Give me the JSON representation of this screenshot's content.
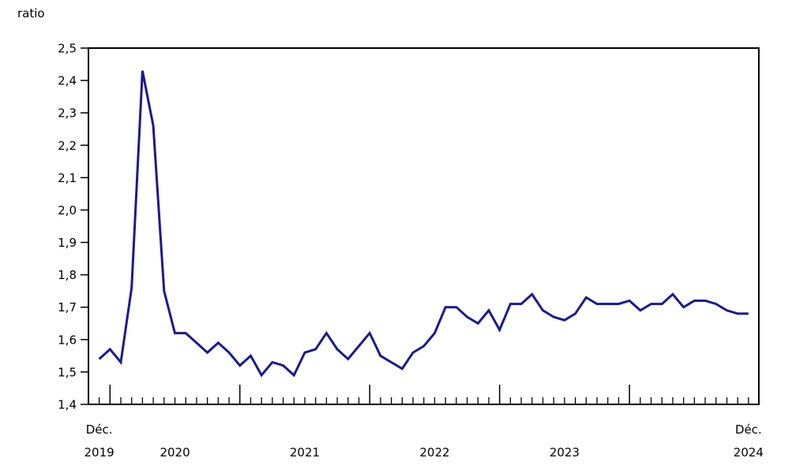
{
  "title": "ratio",
  "chart_data": {
    "type": "line",
    "title": "ratio",
    "frequency": "monthly",
    "x_start": "Déc. 2019",
    "x_end": "Déc. 2024",
    "values": [
      1.54,
      1.57,
      1.53,
      1.76,
      2.43,
      2.26,
      1.75,
      1.62,
      1.62,
      1.59,
      1.56,
      1.59,
      1.56,
      1.52,
      1.55,
      1.49,
      1.53,
      1.52,
      1.49,
      1.56,
      1.57,
      1.62,
      1.57,
      1.54,
      1.58,
      1.62,
      1.55,
      1.53,
      1.51,
      1.56,
      1.58,
      1.62,
      1.7,
      1.7,
      1.67,
      1.65,
      1.69,
      1.63,
      1.71,
      1.71,
      1.74,
      1.69,
      1.67,
      1.66,
      1.68,
      1.73,
      1.71,
      1.71,
      1.71,
      1.72,
      1.69,
      1.71,
      1.71,
      1.74,
      1.7,
      1.72,
      1.72,
      1.71,
      1.69,
      1.68,
      1.68
    ],
    "ylim": [
      1.4,
      2.5
    ],
    "y_tick_step": 0.1,
    "y_tick_labels": [
      "1,4",
      "1,5",
      "1,6",
      "1,7",
      "1,8",
      "1,9",
      "2,0",
      "2,1",
      "2,2",
      "2,3",
      "2,4",
      "2,5"
    ],
    "x_axis_labels": [
      {
        "top": "Déc.",
        "bottom": "2019",
        "month_index": 0
      },
      {
        "bottom": "2020",
        "month_index": 7
      },
      {
        "bottom": "2021",
        "month_index": 19
      },
      {
        "bottom": "2022",
        "month_index": 31
      },
      {
        "bottom": "2023",
        "month_index": 43
      },
      {
        "top": "Déc.",
        "bottom": "2024",
        "month_index": 60
      }
    ],
    "year_tick_month_indices": [
      1,
      13,
      25,
      37,
      49
    ],
    "grid": false,
    "legend": false,
    "line_color": "#1a1a90",
    "axis_color": "#000000",
    "background_color": "#ffffff"
  }
}
